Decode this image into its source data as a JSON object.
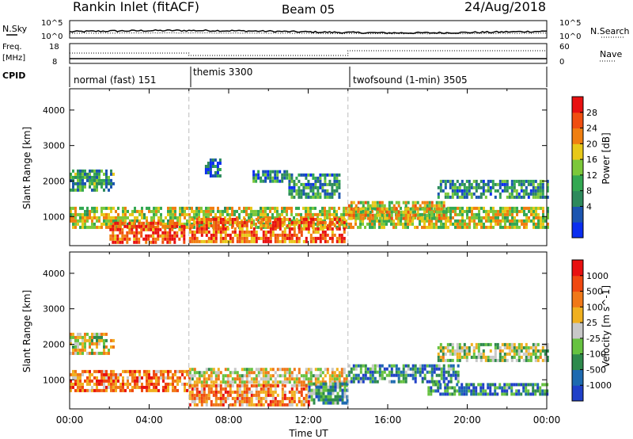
{
  "header": {
    "title": "Rankin Inlet (fitACF)",
    "beam": "Beam 05",
    "date": "24/Aug/2018"
  },
  "noise_panel": {
    "left_label": "N.Sky",
    "right_label": "N.Search",
    "left_ticks": [
      "10^5",
      "10^0"
    ],
    "right_ticks": [
      "10^5",
      "10^0"
    ]
  },
  "freq_panel": {
    "left_label_line1": "Freq.",
    "left_label_line2": "[MHz]",
    "right_label": "Nave",
    "left_ticks": [
      "18",
      "8"
    ],
    "right_ticks": [
      "60",
      "0"
    ]
  },
  "cpid": {
    "label": "CPID",
    "segments": [
      {
        "start_hour": 0,
        "name": "normal (fast) 151"
      },
      {
        "start_hour": 6,
        "name": "themis 3300"
      },
      {
        "start_hour": 14,
        "name": "twofsound (1-min) 3505"
      }
    ]
  },
  "chart_data": [
    {
      "type": "heatmap",
      "title": "Power",
      "ylabel": "Slant Range [km]",
      "xlabel": "",
      "xlim_hours": [
        0,
        24
      ],
      "ylim": [
        180,
        4600
      ],
      "yticks": [
        1000,
        2000,
        3000,
        4000
      ],
      "colorbar": {
        "label": "Power [dB]",
        "ticks": [
          "28",
          "24",
          "20",
          "16",
          "12",
          "8",
          "4"
        ],
        "colors": [
          "#0a2ef0",
          "#1b55b0",
          "#2d8a5c",
          "#33a852",
          "#7cc83a",
          "#e8c818",
          "#f07f10",
          "#f04e10",
          "#e81010"
        ]
      },
      "echo_bands": [
        {
          "t0": 0.0,
          "t1": 24.0,
          "r0": 650,
          "r1": 1250,
          "level": 0.55
        },
        {
          "t0": 0.0,
          "t1": 2.2,
          "r0": 1700,
          "r1": 2300,
          "level": 0.35
        },
        {
          "t0": 2.0,
          "t1": 5.8,
          "r0": 230,
          "r1": 800,
          "level": 0.85
        },
        {
          "t0": 6.0,
          "t1": 13.8,
          "r0": 250,
          "r1": 900,
          "level": 0.8
        },
        {
          "t0": 6.8,
          "t1": 7.6,
          "r0": 2100,
          "r1": 2600,
          "level": 0.2
        },
        {
          "t0": 9.2,
          "t1": 11.0,
          "r0": 1950,
          "r1": 2300,
          "level": 0.25
        },
        {
          "t0": 11.0,
          "t1": 13.6,
          "r0": 1500,
          "r1": 2200,
          "level": 0.3
        },
        {
          "t0": 14.0,
          "t1": 19.0,
          "r0": 900,
          "r1": 1400,
          "level": 0.6
        },
        {
          "t0": 18.5,
          "t1": 24.0,
          "r0": 1500,
          "r1": 2000,
          "level": 0.3
        }
      ]
    },
    {
      "type": "heatmap",
      "title": "Velocity",
      "ylabel": "Slant Range [km]",
      "xlabel": "Time UT",
      "xlim_hours": [
        0,
        24
      ],
      "ylim": [
        180,
        4600
      ],
      "yticks": [
        1000,
        2000,
        3000,
        4000
      ],
      "xticks": [
        "00:00",
        "04:00",
        "08:00",
        "12:00",
        "16:00",
        "20:00",
        "00:00"
      ],
      "colorbar": {
        "label": "Velocity [m s^-1]",
        "ticks": [
          "1000",
          "500",
          "100",
          "25",
          "-25",
          "-100",
          "-500",
          "-1000"
        ],
        "colors": [
          "#2040c8",
          "#1e6ab0",
          "#2e8a4c",
          "#66c240",
          "#c8c8c8",
          "#f0b020",
          "#f07818",
          "#f04810",
          "#e81010"
        ]
      },
      "echo_bands": [
        {
          "t0": 0.0,
          "t1": 2.2,
          "r0": 1700,
          "r1": 2300,
          "level": 0.5
        },
        {
          "t0": 0.0,
          "t1": 6.0,
          "r0": 650,
          "r1": 1250,
          "level": 0.75
        },
        {
          "t0": 6.0,
          "t1": 14.0,
          "r0": 800,
          "r1": 1300,
          "level": 0.55
        },
        {
          "t0": 6.0,
          "t1": 12.0,
          "r0": 250,
          "r1": 800,
          "level": 0.7
        },
        {
          "t0": 12.0,
          "t1": 14.0,
          "r0": 300,
          "r1": 900,
          "level": 0.3
        },
        {
          "t0": 14.0,
          "t1": 19.5,
          "r0": 900,
          "r1": 1400,
          "level": 0.25
        },
        {
          "t0": 18.0,
          "t1": 24.0,
          "r0": 550,
          "r1": 900,
          "level": 0.22
        },
        {
          "t0": 18.5,
          "t1": 24.0,
          "r0": 1500,
          "r1": 2000,
          "level": 0.45
        }
      ]
    }
  ]
}
